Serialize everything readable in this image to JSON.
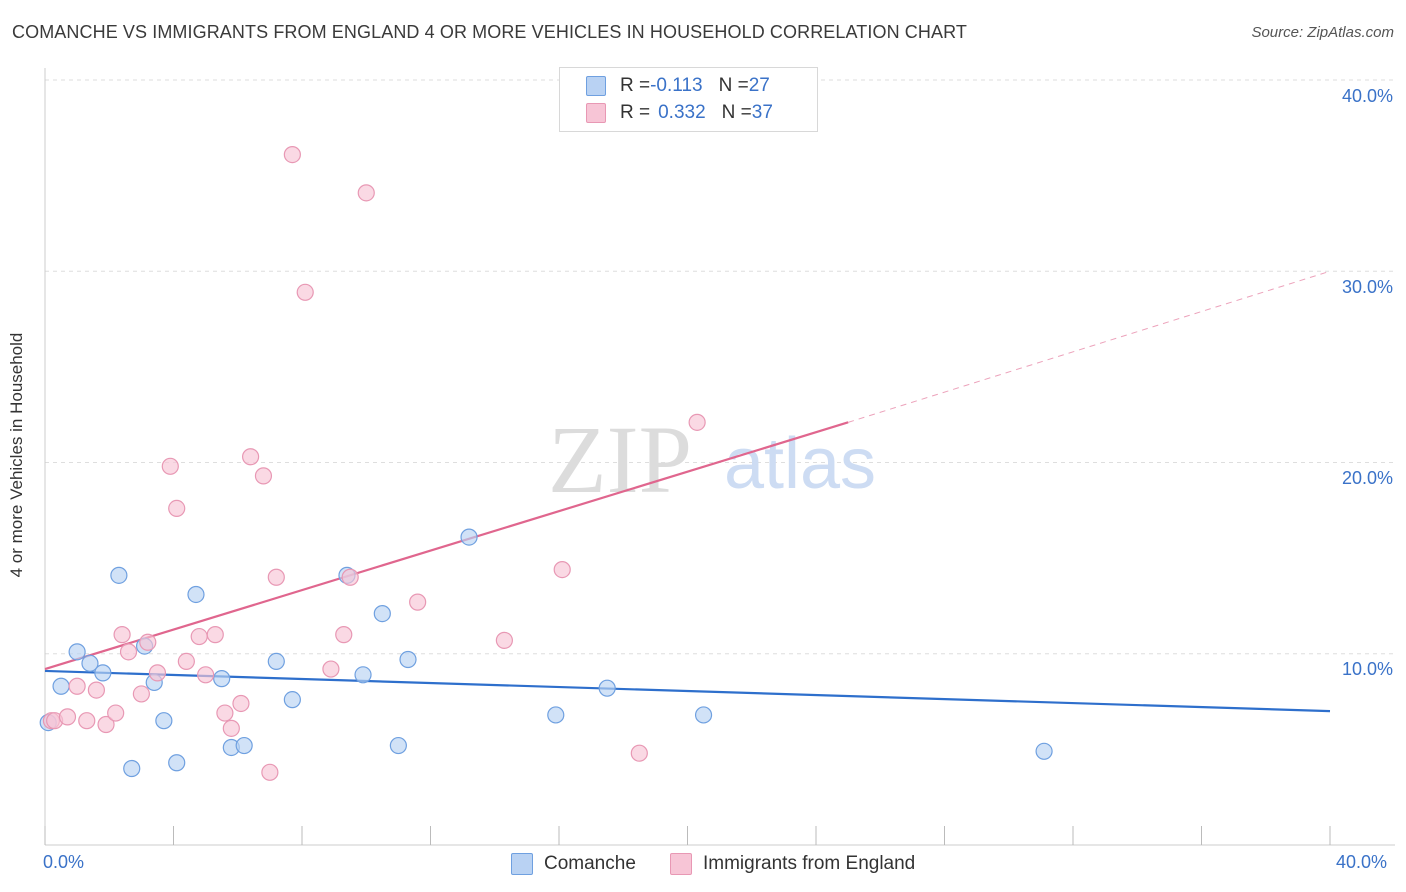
{
  "chart_data": {
    "type": "scatter",
    "title": "COMANCHE VS IMMIGRANTS FROM ENGLAND 4 OR MORE VEHICLES IN HOUSEHOLD CORRELATION CHART",
    "source": "Source: ZipAtlas.com",
    "xlabel": "",
    "ylabel": "4 or more Vehicles in Household",
    "xlim": [
      0,
      40
    ],
    "ylim": [
      0,
      40
    ],
    "x_tick_labels": [
      "0.0%",
      "40.0%"
    ],
    "y_ticks": [
      10,
      20,
      30,
      40
    ],
    "y_tick_labels": [
      "10.0%",
      "20.0%",
      "30.0%",
      "40.0%"
    ],
    "grid": true,
    "watermark": "ZIPatlas",
    "legend_stats": [
      {
        "r_label": "R = ",
        "r": "-0.113",
        "n_label": "N = ",
        "n": "27"
      },
      {
        "r_label": "R = ",
        "r": "0.332",
        "n_label": "N = ",
        "n": "37"
      }
    ],
    "series": [
      {
        "name": "Comanche",
        "color": "#6fa0e0",
        "fill": "#b9d2f3",
        "trend_color": "#2e6fcc",
        "trend": {
          "x0": 0,
          "y0": 9.1,
          "x1": 40,
          "y1": 7.0
        },
        "points": [
          [
            0.1,
            6.4
          ],
          [
            0.5,
            8.3
          ],
          [
            1.0,
            10.1
          ],
          [
            1.4,
            9.5
          ],
          [
            1.8,
            9.0
          ],
          [
            2.3,
            14.1
          ],
          [
            2.7,
            4.0
          ],
          [
            3.1,
            10.4
          ],
          [
            3.4,
            8.5
          ],
          [
            3.7,
            6.5
          ],
          [
            4.1,
            4.3
          ],
          [
            4.7,
            13.1
          ],
          [
            5.5,
            8.7
          ],
          [
            5.8,
            5.1
          ],
          [
            6.2,
            5.2
          ],
          [
            7.2,
            9.6
          ],
          [
            7.7,
            7.6
          ],
          [
            9.4,
            14.1
          ],
          [
            9.9,
            8.9
          ],
          [
            10.5,
            12.1
          ],
          [
            11.0,
            5.2
          ],
          [
            11.3,
            9.7
          ],
          [
            13.2,
            16.1
          ],
          [
            15.9,
            6.8
          ],
          [
            17.5,
            8.2
          ],
          [
            20.5,
            6.8
          ],
          [
            31.1,
            4.9
          ]
        ]
      },
      {
        "name": "Immigrants from England",
        "color": "#e898b4",
        "fill": "#f7c5d6",
        "trend_color": "#e0668e",
        "trend": {
          "x0": 0,
          "y0": 9.2,
          "x1": 25,
          "y1": 22.1
        },
        "trend_ext": {
          "x1": 40,
          "y1": 30.0
        },
        "points": [
          [
            0.2,
            6.5
          ],
          [
            0.3,
            6.5
          ],
          [
            0.7,
            6.7
          ],
          [
            1.0,
            8.3
          ],
          [
            1.3,
            6.5
          ],
          [
            1.6,
            8.1
          ],
          [
            1.9,
            6.3
          ],
          [
            2.2,
            6.9
          ],
          [
            2.4,
            11.0
          ],
          [
            2.6,
            10.1
          ],
          [
            3.0,
            7.9
          ],
          [
            3.2,
            10.6
          ],
          [
            3.5,
            9.0
          ],
          [
            3.9,
            19.8
          ],
          [
            4.1,
            17.6
          ],
          [
            4.4,
            9.6
          ],
          [
            4.8,
            10.9
          ],
          [
            5.0,
            8.9
          ],
          [
            5.3,
            11.0
          ],
          [
            5.6,
            6.9
          ],
          [
            5.8,
            6.1
          ],
          [
            6.1,
            7.4
          ],
          [
            6.4,
            20.3
          ],
          [
            6.8,
            19.3
          ],
          [
            7.0,
            3.8
          ],
          [
            7.2,
            14.0
          ],
          [
            7.7,
            36.1
          ],
          [
            8.1,
            28.9
          ],
          [
            8.9,
            9.2
          ],
          [
            9.3,
            11.0
          ],
          [
            9.5,
            14.0
          ],
          [
            10.0,
            34.1
          ],
          [
            11.6,
            12.7
          ],
          [
            14.3,
            10.7
          ],
          [
            16.1,
            14.4
          ],
          [
            18.5,
            4.8
          ],
          [
            20.3,
            22.1
          ]
        ]
      }
    ]
  }
}
